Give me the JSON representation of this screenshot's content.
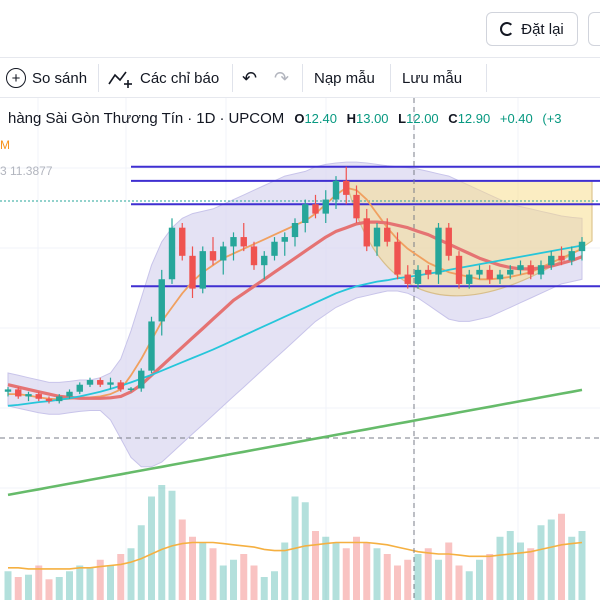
{
  "header": {
    "reset_label": "Đặt lại",
    "toolbar": {
      "compare_label": "So sánh",
      "indicators_label": "Các chỉ báo",
      "load_template_label": "Nạp mẫu",
      "save_template_label": "Lưu mẫu"
    }
  },
  "legend": {
    "symbol_name": "hàng Sài Gòn Thương Tín",
    "interval": "1D",
    "exchange": "UPCOM",
    "ohlc": {
      "open_key": "O",
      "open": "12.40",
      "high_key": "H",
      "high": "13.00",
      "low_key": "L",
      "low": "12.00",
      "close_key": "C",
      "close": "12.90",
      "change": "+0.40",
      "change_pct": "(+3"
    },
    "indicator_value_1": "M",
    "indicator_value_2": "3  11.3877"
  },
  "colors": {
    "up": "#26a69a",
    "down": "#ef5350",
    "ma_orange": "#f0a060",
    "ma_red": "#e57373",
    "ma_cyan": "#26c6da",
    "ma_green": "#66bb6a",
    "vol_ma": "#f5b041",
    "hline": "#3f2fd1",
    "bb_fill": "#d8d6f0",
    "cup_fill": "#f7dc8a"
  },
  "chart_data": {
    "type": "candlestick",
    "y_range": [
      7.0,
      13.4
    ],
    "horizontal_lines": [
      13.0,
      12.7,
      12.2,
      10.45
    ],
    "ma_series": [
      {
        "color_key": "ma_orange",
        "values": [
          8.15,
          8.15,
          8.12,
          8.08,
          8.05,
          8.04,
          8.05,
          8.07,
          8.08,
          8.1,
          8.15,
          8.25,
          8.55,
          8.9,
          9.3,
          9.7,
          10.0,
          10.3,
          10.55,
          10.75,
          10.9,
          11.05,
          11.15,
          11.25,
          11.35,
          11.45,
          11.55,
          11.65,
          11.75,
          11.85,
          12.0,
          12.2,
          12.4,
          12.55,
          12.5,
          12.3,
          12.0,
          11.7,
          11.45,
          11.25,
          11.1,
          10.95,
          10.85,
          10.75,
          10.7,
          10.65,
          10.6,
          10.6,
          10.62,
          10.65,
          10.7,
          10.75,
          10.85,
          10.95,
          11.05,
          11.15,
          11.25
        ]
      },
      {
        "color_key": "ma_red",
        "values": [
          8.35,
          8.3,
          8.25,
          8.2,
          8.15,
          8.1,
          8.08,
          8.06,
          8.06,
          8.06,
          8.07,
          8.1,
          8.2,
          8.35,
          8.55,
          8.75,
          8.95,
          9.15,
          9.35,
          9.55,
          9.75,
          9.95,
          10.15,
          10.3,
          10.45,
          10.6,
          10.75,
          10.9,
          11.05,
          11.2,
          11.35,
          11.5,
          11.62,
          11.7,
          11.78,
          11.82,
          11.82,
          11.8,
          11.75,
          11.7,
          11.62,
          11.55,
          11.45,
          11.35,
          11.25,
          11.15,
          11.05,
          10.97,
          10.9,
          10.85,
          10.82,
          10.82,
          10.84,
          10.88,
          10.94,
          11.0,
          11.08
        ]
      },
      {
        "color_key": "ma_cyan",
        "values": [
          7.9,
          7.92,
          7.95,
          7.98,
          8.0,
          8.03,
          8.06,
          8.1,
          8.15,
          8.2,
          8.26,
          8.33,
          8.4,
          8.48,
          8.56,
          8.65,
          8.74,
          8.83,
          8.92,
          9.01,
          9.1,
          9.2,
          9.3,
          9.4,
          9.5,
          9.6,
          9.7,
          9.8,
          9.9,
          10.0,
          10.1,
          10.2,
          10.3,
          10.38,
          10.45,
          10.5,
          10.55,
          10.58,
          10.62,
          10.65,
          10.68,
          10.72,
          10.75,
          10.8,
          10.84,
          10.88,
          10.92,
          10.96,
          11.0,
          11.04,
          11.08,
          11.12,
          11.16,
          11.2,
          11.24,
          11.28,
          11.32
        ]
      },
      {
        "color_key": "ma_green",
        "values": [
          6.0,
          6.04,
          6.08,
          6.12,
          6.16,
          6.2,
          6.24,
          6.28,
          6.32,
          6.36,
          6.4,
          6.44,
          6.48,
          6.52,
          6.56,
          6.6,
          6.64,
          6.68,
          6.72,
          6.76,
          6.8,
          6.84,
          6.88,
          6.92,
          6.96,
          7.0,
          7.04,
          7.08,
          7.12,
          7.16,
          7.2,
          7.24,
          7.28,
          7.32,
          7.36,
          7.4,
          7.44,
          7.48,
          7.52,
          7.56,
          7.6,
          7.64,
          7.68,
          7.72,
          7.76,
          7.8,
          7.84,
          7.88,
          7.92,
          7.96,
          8.0,
          8.04,
          8.08,
          8.12,
          8.16,
          8.2,
          8.24
        ]
      }
    ],
    "bollinger": {
      "upper": [
        8.6,
        8.55,
        8.5,
        8.45,
        8.4,
        8.4,
        8.42,
        8.45,
        8.45,
        8.5,
        8.6,
        8.9,
        9.5,
        10.2,
        10.9,
        11.4,
        11.7,
        11.9,
        12.0,
        12.05,
        12.1,
        12.2,
        12.3,
        12.4,
        12.5,
        12.6,
        12.7,
        12.8,
        12.85,
        12.9,
        13.0,
        13.05,
        13.08,
        13.1,
        13.1,
        13.08,
        13.05,
        13.02,
        13.0,
        12.98,
        12.95,
        12.9,
        12.85,
        12.8,
        12.7,
        12.6,
        12.5,
        12.4,
        12.3,
        12.2,
        12.15,
        12.1,
        12.05,
        12.0,
        11.95,
        11.92,
        11.9
      ],
      "lower": [
        7.9,
        7.85,
        7.8,
        7.75,
        7.72,
        7.72,
        7.75,
        7.78,
        7.8,
        7.8,
        7.6,
        7.2,
        6.8,
        6.6,
        6.6,
        6.7,
        6.9,
        7.1,
        7.3,
        7.5,
        7.7,
        7.9,
        8.1,
        8.3,
        8.5,
        8.7,
        8.9,
        9.1,
        9.3,
        9.5,
        9.7,
        9.85,
        10.0,
        10.1,
        10.2,
        10.25,
        10.3,
        10.35,
        10.35,
        10.3,
        10.2,
        10.05,
        9.9,
        9.75,
        9.7,
        9.7,
        9.75,
        9.8,
        9.9,
        10.0,
        10.1,
        10.2,
        10.3,
        10.4,
        10.5,
        10.55,
        10.6
      ]
    },
    "candles": [
      [
        8.2,
        8.3,
        8.1,
        8.25
      ],
      [
        8.25,
        8.3,
        8.05,
        8.1
      ],
      [
        8.1,
        8.2,
        8.0,
        8.15
      ],
      [
        8.15,
        8.2,
        8.0,
        8.05
      ],
      [
        8.05,
        8.1,
        7.95,
        8.0
      ],
      [
        8.0,
        8.15,
        7.95,
        8.1
      ],
      [
        8.1,
        8.25,
        8.05,
        8.2
      ],
      [
        8.2,
        8.4,
        8.15,
        8.35
      ],
      [
        8.35,
        8.5,
        8.3,
        8.45
      ],
      [
        8.45,
        8.5,
        8.3,
        8.35
      ],
      [
        8.35,
        8.5,
        8.25,
        8.4
      ],
      [
        8.4,
        8.45,
        8.2,
        8.25
      ],
      [
        8.25,
        8.3,
        8.2,
        8.27
      ],
      [
        8.27,
        8.7,
        8.2,
        8.65
      ],
      [
        8.65,
        9.8,
        8.6,
        9.7
      ],
      [
        9.7,
        10.8,
        9.4,
        10.6
      ],
      [
        10.6,
        11.9,
        10.5,
        11.7
      ],
      [
        11.7,
        11.8,
        11.0,
        11.1
      ],
      [
        11.1,
        11.3,
        10.2,
        10.4
      ],
      [
        10.4,
        11.3,
        10.3,
        11.2
      ],
      [
        11.2,
        11.5,
        10.9,
        11.0
      ],
      [
        11.0,
        11.4,
        10.7,
        11.3
      ],
      [
        11.3,
        11.6,
        11.0,
        11.5
      ],
      [
        11.5,
        11.8,
        11.2,
        11.3
      ],
      [
        11.3,
        11.4,
        10.8,
        10.9
      ],
      [
        10.9,
        11.2,
        10.6,
        11.1
      ],
      [
        11.1,
        11.5,
        11.0,
        11.4
      ],
      [
        11.4,
        11.6,
        11.1,
        11.5
      ],
      [
        11.5,
        11.9,
        11.3,
        11.8
      ],
      [
        11.8,
        12.3,
        11.6,
        12.2
      ],
      [
        12.2,
        12.4,
        11.9,
        12.0
      ],
      [
        12.0,
        12.5,
        11.8,
        12.3
      ],
      [
        12.3,
        12.8,
        12.1,
        12.7
      ],
      [
        12.7,
        13.0,
        12.2,
        12.4
      ],
      [
        12.4,
        12.6,
        11.8,
        11.9
      ],
      [
        11.9,
        12.1,
        11.2,
        11.3
      ],
      [
        11.3,
        11.8,
        11.1,
        11.7
      ],
      [
        11.7,
        11.9,
        11.3,
        11.4
      ],
      [
        11.4,
        11.6,
        10.6,
        10.7
      ],
      [
        10.7,
        10.9,
        10.4,
        10.5
      ],
      [
        10.5,
        10.9,
        10.4,
        10.8
      ],
      [
        10.8,
        10.9,
        10.6,
        10.7
      ],
      [
        10.7,
        11.8,
        10.5,
        11.7
      ],
      [
        11.7,
        11.8,
        11.0,
        11.1
      ],
      [
        11.1,
        11.2,
        10.4,
        10.5
      ],
      [
        10.5,
        10.8,
        10.4,
        10.7
      ],
      [
        10.7,
        10.9,
        10.6,
        10.8
      ],
      [
        10.8,
        10.9,
        10.5,
        10.6
      ],
      [
        10.6,
        10.8,
        10.5,
        10.7
      ],
      [
        10.7,
        10.9,
        10.6,
        10.8
      ],
      [
        10.8,
        11.0,
        10.7,
        10.9
      ],
      [
        10.9,
        11.0,
        10.6,
        10.7
      ],
      [
        10.7,
        11.0,
        10.6,
        10.9
      ],
      [
        10.9,
        11.2,
        10.8,
        11.1
      ],
      [
        11.1,
        11.3,
        10.9,
        11.0
      ],
      [
        11.0,
        11.3,
        10.9,
        11.2
      ],
      [
        11.2,
        11.5,
        11.0,
        11.4
      ]
    ],
    "volume": [
      0.25,
      0.2,
      0.22,
      0.3,
      0.18,
      0.2,
      0.25,
      0.3,
      0.28,
      0.35,
      0.3,
      0.4,
      0.45,
      0.65,
      0.9,
      1.0,
      0.95,
      0.7,
      0.55,
      0.5,
      0.45,
      0.3,
      0.35,
      0.4,
      0.3,
      0.2,
      0.25,
      0.5,
      0.9,
      0.85,
      0.6,
      0.55,
      0.5,
      0.45,
      0.55,
      0.5,
      0.45,
      0.4,
      0.3,
      0.35,
      0.4,
      0.45,
      0.35,
      0.5,
      0.3,
      0.25,
      0.35,
      0.4,
      0.55,
      0.6,
      0.5,
      0.45,
      0.65,
      0.7,
      0.75,
      0.55,
      0.6
    ],
    "volume_ma": [
      0.28,
      0.28,
      0.27,
      0.27,
      0.27,
      0.27,
      0.27,
      0.28,
      0.28,
      0.29,
      0.3,
      0.31,
      0.33,
      0.36,
      0.4,
      0.44,
      0.47,
      0.49,
      0.5,
      0.5,
      0.5,
      0.49,
      0.48,
      0.47,
      0.46,
      0.44,
      0.43,
      0.43,
      0.45,
      0.47,
      0.48,
      0.49,
      0.5,
      0.5,
      0.5,
      0.5,
      0.49,
      0.48,
      0.46,
      0.44,
      0.42,
      0.41,
      0.4,
      0.4,
      0.39,
      0.38,
      0.38,
      0.38,
      0.39,
      0.4,
      0.41,
      0.42,
      0.44,
      0.46,
      0.48,
      0.49,
      0.5
    ]
  }
}
